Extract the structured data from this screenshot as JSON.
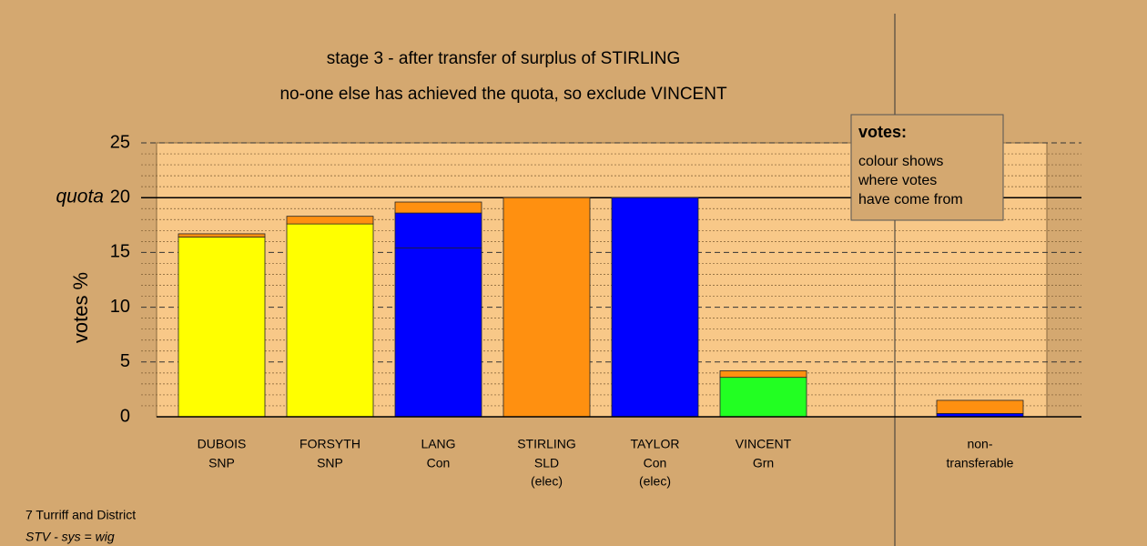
{
  "chart_data": {
    "type": "stacked-bar",
    "title": "stage 3 - after transfer of surplus of STIRLING",
    "subtitle": "no-one else has achieved the quota, so exclude VINCENT",
    "y_label": "votes %",
    "categories": [
      "DUBOIS",
      "FORSYTH",
      "LANG",
      "STIRLING",
      "TAYLOR",
      "VINCENT",
      null,
      "non-"
    ],
    "sublabels": [
      "SNP",
      "SNP",
      "Con",
      "SLD",
      "Con",
      "Grn",
      null,
      "transferable"
    ],
    "notes": [
      null,
      null,
      null,
      "(elec)",
      "(elec)",
      null,
      null,
      null
    ],
    "series": [
      {
        "color": "#ffff00",
        "values": [
          16.4,
          17.6,
          null,
          null,
          null,
          null,
          null,
          null
        ]
      },
      {
        "color": "#0000ff",
        "values": [
          null,
          null,
          15.4,
          null,
          20,
          null,
          null,
          0.3
        ]
      },
      {
        "color": "#0000ff",
        "values": [
          null,
          null,
          3.2,
          null,
          null,
          null,
          null,
          null
        ]
      },
      {
        "color": "#22ff22",
        "values": [
          null,
          null,
          null,
          null,
          null,
          3.6,
          null,
          null
        ]
      },
      {
        "color": "#ff9010",
        "values": [
          0.3,
          0.7,
          1.0,
          20,
          null,
          0.6,
          null,
          1.2
        ]
      }
    ],
    "ylim": [
      0,
      25
    ],
    "yticks": [
      0,
      5,
      10,
      15,
      20,
      25
    ],
    "minor_yticks": [
      1,
      2,
      3,
      4,
      6,
      7,
      8,
      9,
      11,
      12,
      13,
      14,
      16,
      17,
      18,
      19,
      21,
      22,
      23,
      24
    ],
    "quota": {
      "value": 20,
      "label": "quota"
    },
    "legend": {
      "title": "votes:",
      "lines": [
        "colour shows",
        "where votes",
        "have come from"
      ]
    },
    "footer": [
      "7 Turriff and District",
      "STV - sys = wig"
    ]
  }
}
